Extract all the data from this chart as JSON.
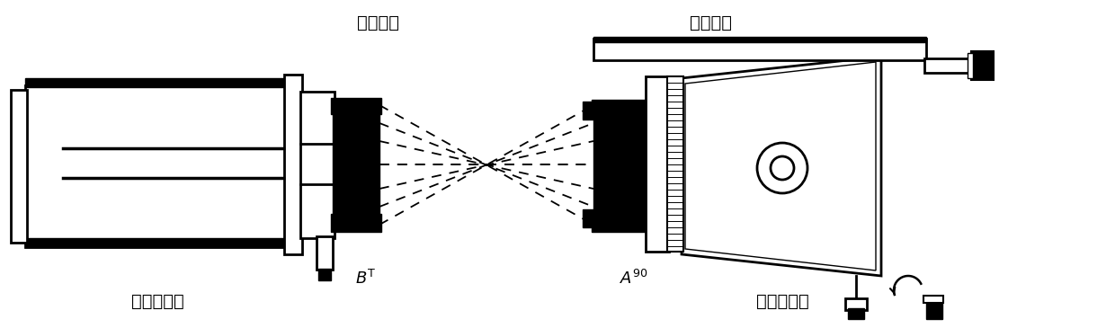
{
  "bg_color": "#ffffff",
  "line_color": "#000000",
  "label_fizeau": "斐索干涉仪",
  "label_trans": "透射球面",
  "label_refl": "反射球面",
  "label_mount": "六维调整架",
  "label_B": "B",
  "label_A": "A",
  "figsize": [
    12.4,
    3.65
  ],
  "dpi": 100
}
